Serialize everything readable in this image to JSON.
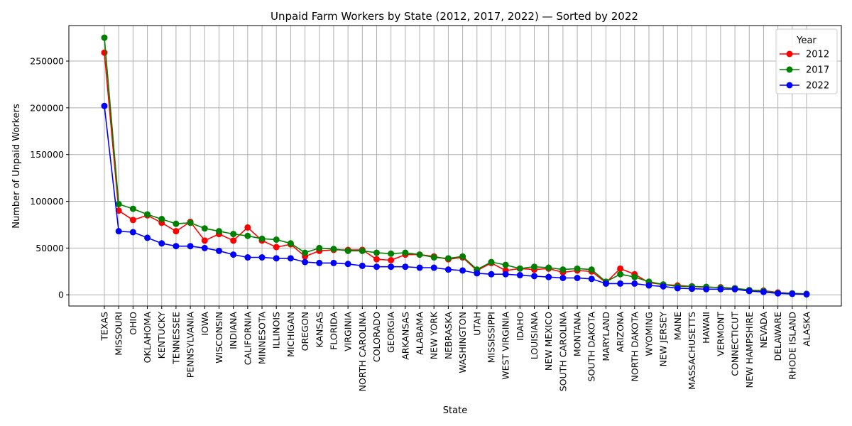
{
  "chart_data": {
    "type": "line",
    "title": "Unpaid Farm Workers by State (2012, 2017, 2022) — Sorted by 2022",
    "xlabel": "State",
    "ylabel": "Number of Unpaid Workers",
    "ylim": [
      -12000,
      288000
    ],
    "yticks": [
      0,
      50000,
      100000,
      150000,
      200000,
      250000
    ],
    "grid": true,
    "legend": {
      "title": "Year",
      "placement": "top-right"
    },
    "categories": [
      "TEXAS",
      "MISSOURI",
      "OHIO",
      "OKLAHOMA",
      "KENTUCKY",
      "TENNESSEE",
      "PENNSYLVANIA",
      "IOWA",
      "WISCONSIN",
      "INDIANA",
      "CALIFORNIA",
      "MINNESOTA",
      "ILLINOIS",
      "MICHIGAN",
      "OREGON",
      "KANSAS",
      "FLORIDA",
      "VIRGINIA",
      "NORTH CAROLINA",
      "COLORADO",
      "GEORGIA",
      "ARKANSAS",
      "ALABAMA",
      "NEW YORK",
      "NEBRASKA",
      "WASHINGTON",
      "UTAH",
      "MISSISSIPPI",
      "WEST VIRGINIA",
      "IDAHO",
      "LOUISIANA",
      "NEW MEXICO",
      "SOUTH CAROLINA",
      "MONTANA",
      "SOUTH DAKOTA",
      "MARYLAND",
      "ARIZONA",
      "NORTH DAKOTA",
      "WYOMING",
      "NEW JERSEY",
      "MAINE",
      "MASSACHUSETTS",
      "HAWAII",
      "VERMONT",
      "CONNECTICUT",
      "NEW HAMPSHIRE",
      "NEVADA",
      "DELAWARE",
      "RHODE ISLAND",
      "ALASKA"
    ],
    "series": [
      {
        "name": "2012",
        "color": "#ff0000",
        "values": [
          259000,
          90000,
          80000,
          85000,
          77000,
          68000,
          78000,
          58000,
          65000,
          58000,
          72000,
          58000,
          51000,
          54000,
          41000,
          47000,
          48000,
          48000,
          48000,
          38000,
          37000,
          43000,
          43000,
          41000,
          38000,
          40000,
          26000,
          34000,
          26000,
          28000,
          27000,
          28000,
          24000,
          26000,
          25000,
          13000,
          28000,
          22000,
          13000,
          11000,
          10000,
          9000,
          8000,
          8000,
          7000,
          5000,
          4500,
          2500,
          1500,
          1000
        ]
      },
      {
        "name": "2017",
        "color": "#008000",
        "values": [
          275000,
          97000,
          92000,
          86000,
          81000,
          76000,
          77000,
          71000,
          68000,
          65000,
          63000,
          60000,
          59000,
          55000,
          45000,
          50000,
          49000,
          47000,
          47000,
          45000,
          44000,
          45000,
          43000,
          40000,
          39000,
          41000,
          27000,
          35000,
          32000,
          28000,
          30000,
          29000,
          27000,
          28000,
          27000,
          14000,
          22000,
          19000,
          14000,
          11000,
          9000,
          9000,
          8500,
          7500,
          7000,
          5000,
          4000,
          2000,
          1500,
          1000
        ]
      },
      {
        "name": "2022",
        "color": "#0000ff",
        "values": [
          202000,
          68000,
          67000,
          61000,
          55000,
          52000,
          52000,
          50000,
          47000,
          43000,
          40000,
          40000,
          39000,
          39000,
          35000,
          34000,
          34000,
          33000,
          31000,
          30000,
          30000,
          30000,
          29000,
          29000,
          27000,
          26000,
          23000,
          22000,
          22000,
          21000,
          20000,
          19000,
          18000,
          18000,
          17000,
          12000,
          12000,
          12000,
          10000,
          9000,
          7000,
          6500,
          6000,
          6000,
          6000,
          4000,
          3000,
          1500,
          1000,
          500
        ]
      }
    ]
  }
}
